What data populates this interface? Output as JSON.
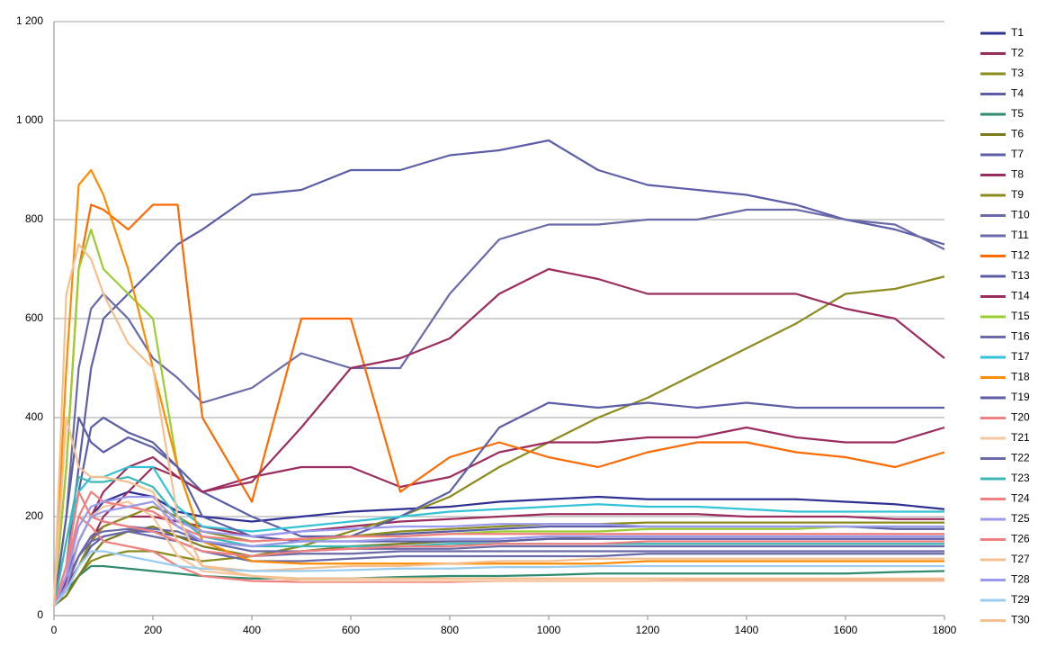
{
  "chart_data": {
    "type": "line",
    "x": [
      0,
      25,
      50,
      75,
      100,
      150,
      200,
      250,
      300,
      400,
      500,
      600,
      700,
      800,
      900,
      1000,
      1100,
      1200,
      1300,
      1400,
      1500,
      1600,
      1700,
      1800
    ],
    "xlim": [
      0,
      1800
    ],
    "xticks": [
      0,
      200,
      400,
      600,
      800,
      1000,
      1200,
      1400,
      1600,
      1800
    ],
    "ylim": [
      0,
      1200
    ],
    "yticks": [
      0,
      200,
      400,
      600,
      800,
      {
        "value": 1000,
        "label": "1 000"
      },
      {
        "value": 1200,
        "label": "1 200"
      }
    ],
    "grid": true,
    "legend": "right",
    "series": [
      {
        "name": "T1",
        "color": "#2e3192",
        "values": [
          20,
          80,
          150,
          200,
          230,
          250,
          240,
          210,
          200,
          190,
          200,
          210,
          215,
          220,
          230,
          235,
          240,
          235,
          235,
          235,
          235,
          230,
          225,
          215
        ]
      },
      {
        "name": "T2",
        "color": "#9b2d5e",
        "values": [
          20,
          70,
          120,
          160,
          180,
          200,
          200,
          190,
          180,
          160,
          170,
          180,
          190,
          195,
          200,
          205,
          205,
          205,
          205,
          200,
          200,
          200,
          195,
          195
        ]
      },
      {
        "name": "T3",
        "color": "#8b8b1e",
        "values": [
          20,
          40,
          80,
          110,
          120,
          130,
          130,
          120,
          110,
          120,
          140,
          170,
          200,
          240,
          300,
          350,
          400,
          440,
          490,
          540,
          590,
          650,
          660,
          685
        ]
      },
      {
        "name": "T4",
        "color": "#5b5ea6",
        "values": [
          20,
          60,
          100,
          140,
          160,
          170,
          170,
          160,
          150,
          140,
          150,
          160,
          165,
          170,
          175,
          180,
          180,
          180,
          180,
          180,
          180,
          180,
          175,
          175
        ]
      },
      {
        "name": "T5",
        "color": "#2e8b6e",
        "values": [
          20,
          50,
          80,
          100,
          100,
          95,
          90,
          85,
          80,
          75,
          75,
          75,
          78,
          80,
          80,
          82,
          85,
          85,
          85,
          85,
          85,
          85,
          88,
          90
        ]
      },
      {
        "name": "T6",
        "color": "#7a7a1a",
        "values": [
          20,
          40,
          80,
          120,
          150,
          170,
          180,
          160,
          140,
          120,
          130,
          140,
          145,
          150,
          150,
          155,
          160,
          160,
          160,
          160,
          160,
          160,
          160,
          160
        ]
      },
      {
        "name": "T7",
        "color": "#5b5ea6",
        "values": [
          20,
          100,
          300,
          500,
          600,
          650,
          700,
          750,
          780,
          850,
          860,
          900,
          900,
          930,
          940,
          960,
          900,
          870,
          860,
          850,
          830,
          800,
          780,
          750
        ]
      },
      {
        "name": "T8",
        "color": "#9b2d5e",
        "values": [
          20,
          60,
          100,
          150,
          200,
          250,
          300,
          280,
          250,
          280,
          300,
          300,
          260,
          280,
          330,
          350,
          350,
          360,
          360,
          380,
          360,
          350,
          350,
          380
        ]
      },
      {
        "name": "T9",
        "color": "#8b8b1e",
        "values": [
          20,
          50,
          100,
          150,
          180,
          200,
          220,
          200,
          170,
          150,
          155,
          160,
          170,
          175,
          180,
          185,
          185,
          188,
          188,
          188,
          188,
          188,
          188,
          188
        ]
      },
      {
        "name": "T10",
        "color": "#6a6aa8",
        "values": [
          20,
          200,
          500,
          620,
          650,
          600,
          520,
          480,
          430,
          460,
          530,
          500,
          500,
          650,
          760,
          790,
          790,
          800,
          800,
          820,
          820,
          800,
          790,
          740
        ]
      },
      {
        "name": "T11",
        "color": "#6a6aa8",
        "values": [
          20,
          60,
          120,
          150,
          160,
          170,
          160,
          150,
          130,
          110,
          110,
          115,
          120,
          120,
          120,
          120,
          120,
          125,
          125,
          125,
          125,
          125,
          125,
          125
        ]
      },
      {
        "name": "T12",
        "color": "#ff6a00",
        "values": [
          20,
          300,
          700,
          830,
          820,
          780,
          830,
          830,
          400,
          230,
          600,
          600,
          250,
          320,
          350,
          320,
          300,
          330,
          350,
          350,
          330,
          320,
          300,
          330
        ]
      },
      {
        "name": "T13",
        "color": "#5b5ea6",
        "values": [
          20,
          100,
          250,
          380,
          400,
          370,
          350,
          300,
          250,
          200,
          160,
          160,
          200,
          250,
          380,
          430,
          420,
          430,
          420,
          430,
          420,
          420,
          420,
          420
        ]
      },
      {
        "name": "T14",
        "color": "#9b2d5e",
        "values": [
          20,
          80,
          150,
          200,
          250,
          300,
          320,
          280,
          250,
          270,
          380,
          500,
          520,
          560,
          650,
          700,
          680,
          650,
          650,
          650,
          650,
          620,
          600,
          520
        ]
      },
      {
        "name": "T15",
        "color": "#9acd32",
        "values": [
          20,
          300,
          700,
          780,
          700,
          650,
          600,
          300,
          150,
          140,
          150,
          160,
          160,
          165,
          170,
          170,
          170,
          175,
          175,
          175,
          175,
          180,
          180,
          180
        ]
      },
      {
        "name": "T16",
        "color": "#6a6aa8",
        "values": [
          20,
          80,
          150,
          200,
          190,
          180,
          175,
          170,
          150,
          130,
          130,
          135,
          135,
          135,
          140,
          140,
          140,
          140,
          140,
          140,
          140,
          140,
          140,
          140
        ]
      },
      {
        "name": "T17",
        "color": "#33c3d6",
        "values": [
          20,
          150,
          250,
          280,
          280,
          300,
          300,
          220,
          180,
          170,
          180,
          190,
          200,
          210,
          215,
          220,
          225,
          220,
          220,
          215,
          210,
          210,
          210,
          210
        ]
      },
      {
        "name": "T18",
        "color": "#ff8c00",
        "values": [
          20,
          500,
          870,
          900,
          850,
          700,
          500,
          300,
          150,
          110,
          105,
          105,
          105,
          105,
          105,
          105,
          105,
          110,
          110,
          110,
          110,
          110,
          110,
          110
        ]
      },
      {
        "name": "T19",
        "color": "#5b5ea6",
        "values": [
          20,
          200,
          400,
          350,
          330,
          360,
          340,
          300,
          200,
          160,
          150,
          150,
          150,
          150,
          150,
          155,
          155,
          155,
          155,
          155,
          155,
          155,
          155,
          155
        ]
      },
      {
        "name": "T20",
        "color": "#f08080",
        "values": [
          20,
          100,
          200,
          180,
          150,
          140,
          130,
          100,
          80,
          70,
          68,
          68,
          68,
          68,
          70,
          70,
          70,
          70,
          72,
          72,
          72,
          72,
          72,
          72
        ]
      },
      {
        "name": "T21",
        "color": "#f5c6a0",
        "values": [
          20,
          100,
          150,
          200,
          220,
          230,
          200,
          120,
          90,
          80,
          70,
          70,
          70,
          70,
          70,
          70,
          70,
          70,
          70,
          70,
          70,
          70,
          70,
          70
        ]
      },
      {
        "name": "T22",
        "color": "#6a6aa8",
        "values": [
          20,
          60,
          120,
          160,
          170,
          175,
          170,
          150,
          130,
          120,
          125,
          125,
          130,
          130,
          130,
          130,
          130,
          130,
          130,
          130,
          130,
          130,
          130,
          130
        ]
      },
      {
        "name": "T23",
        "color": "#3cb8b8",
        "values": [
          20,
          150,
          280,
          270,
          270,
          280,
          260,
          200,
          160,
          140,
          140,
          140,
          140,
          145,
          145,
          145,
          145,
          145,
          145,
          145,
          145,
          145,
          145,
          145
        ]
      },
      {
        "name": "T24",
        "color": "#f08080",
        "values": [
          20,
          80,
          200,
          250,
          230,
          220,
          210,
          180,
          160,
          150,
          155,
          160,
          160,
          165,
          165,
          165,
          165,
          165,
          165,
          165,
          165,
          165,
          165,
          165
        ]
      },
      {
        "name": "T25",
        "color": "#9999ee",
        "values": [
          20,
          80,
          180,
          220,
          230,
          240,
          240,
          190,
          170,
          160,
          170,
          175,
          180,
          180,
          185,
          185,
          185,
          180,
          180,
          180,
          180,
          180,
          180,
          180
        ]
      },
      {
        "name": "T26",
        "color": "#f08080",
        "values": [
          20,
          100,
          250,
          200,
          190,
          180,
          170,
          150,
          130,
          120,
          130,
          135,
          140,
          140,
          145,
          145,
          145,
          150,
          150,
          150,
          150,
          150,
          150,
          150
        ]
      },
      {
        "name": "T27",
        "color": "#f5c090",
        "values": [
          20,
          400,
          300,
          280,
          280,
          270,
          250,
          150,
          100,
          90,
          95,
          100,
          100,
          105,
          110,
          110,
          115,
          115,
          115,
          115,
          115,
          115,
          115,
          115
        ]
      },
      {
        "name": "T28",
        "color": "#9999ee",
        "values": [
          20,
          60,
          150,
          200,
          210,
          220,
          230,
          180,
          150,
          140,
          150,
          150,
          155,
          155,
          155,
          160,
          160,
          160,
          160,
          160,
          160,
          160,
          160,
          160
        ]
      },
      {
        "name": "T29",
        "color": "#99ccee",
        "values": [
          20,
          50,
          100,
          130,
          130,
          120,
          110,
          100,
          95,
          90,
          90,
          92,
          95,
          95,
          98,
          98,
          100,
          100,
          100,
          100,
          100,
          100,
          100,
          100
        ]
      },
      {
        "name": "T30",
        "color": "#f5c090",
        "values": [
          20,
          650,
          750,
          720,
          650,
          550,
          500,
          200,
          100,
          80,
          75,
          75,
          75,
          75,
          75,
          75,
          75,
          75,
          75,
          75,
          75,
          75,
          75,
          75
        ]
      }
    ]
  }
}
